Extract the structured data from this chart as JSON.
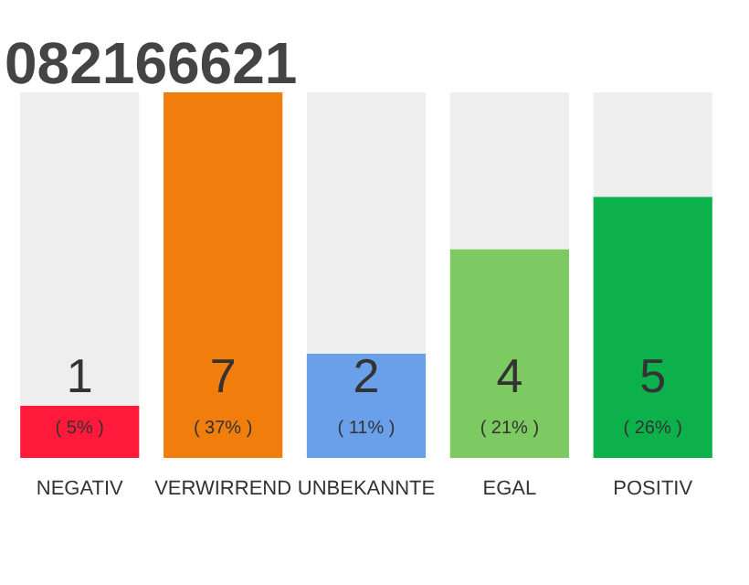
{
  "chart_data": {
    "type": "bar",
    "title": "082166621",
    "categories": [
      "NEGATIV",
      "VERWIRREND",
      "UNBEKANNTE",
      "EGAL",
      "POSITIV"
    ],
    "stacked": true,
    "ylim": [
      0,
      7
    ],
    "tick_labels": "x",
    "grid": false,
    "series": [
      {
        "colors": [
          "#ff1a3c",
          "#f07d0c",
          "#6aa0ea",
          "#7dc962",
          "#0db14b"
        ],
        "values": [
          1,
          7,
          2,
          4,
          5
        ],
        "value_labels": [
          "1",
          "7",
          "2",
          "4",
          "5"
        ]
      },
      {
        "color": "#eeeeee",
        "values": [
          6,
          0,
          5,
          3,
          2
        ]
      }
    ],
    "annotations": [
      {
        "text": "( 5% )",
        "x": "NEGATIV",
        "y": 0
      },
      {
        "text": "( 37% )",
        "x": "VERWIRREND",
        "y": 0
      },
      {
        "text": "( 11% )",
        "x": "UNBEKANNTE",
        "y": 0
      },
      {
        "text": "( 21% )",
        "x": "EGAL",
        "y": 0
      },
      {
        "text": "( 26% )",
        "x": "POSITIV",
        "y": 0
      }
    ]
  }
}
